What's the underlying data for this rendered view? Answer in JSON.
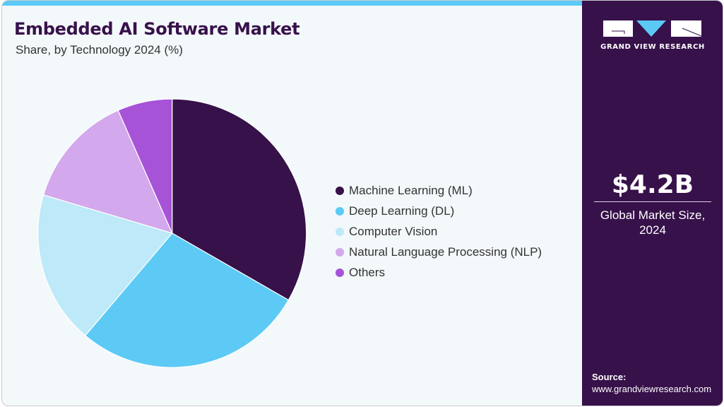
{
  "header": {
    "title": "Embedded AI Software Market",
    "subtitle": "Share, by Technology 2024 (%)"
  },
  "colors": {
    "accent_bar": "#5cc9f5",
    "sidebar_bg": "#37114a",
    "card_bg": "#f3f8fb",
    "title": "#37114a"
  },
  "chart_data": {
    "type": "pie",
    "title": "Embedded AI Software Market",
    "subtitle": "Share, by Technology 2024 (%)",
    "categories": [
      "Machine Learning (ML)",
      "Deep Learning (DL)",
      "Computer Vision",
      "Natural Language Processing (NLP)",
      "Others"
    ],
    "values": [
      33.3,
      27.9,
      18.4,
      13.8,
      6.6
    ],
    "colors": [
      "#37114a",
      "#5ccaf5",
      "#bde9f9",
      "#d3a8ec",
      "#a653d8"
    ],
    "start_angle": "12 o'clock, clockwise",
    "legend_position": "right",
    "units": "%"
  },
  "legend": {
    "items": [
      {
        "label": "Machine Learning (ML)",
        "color": "#37114a"
      },
      {
        "label": "Deep Learning (DL)",
        "color": "#5ccaf5"
      },
      {
        "label": "Computer Vision",
        "color": "#bde9f9"
      },
      {
        "label": "Natural Language Processing (NLP)",
        "color": "#d3a8ec"
      },
      {
        "label": "Others",
        "color": "#a653d8"
      }
    ]
  },
  "sidebar": {
    "logo_text": "GRAND VIEW RESEARCH",
    "market_value": "$4.2B",
    "market_label_line1": "Global Market Size,",
    "market_label_line2": "2024",
    "source_label": "Source:",
    "source_url": "www.grandviewresearch.com"
  }
}
